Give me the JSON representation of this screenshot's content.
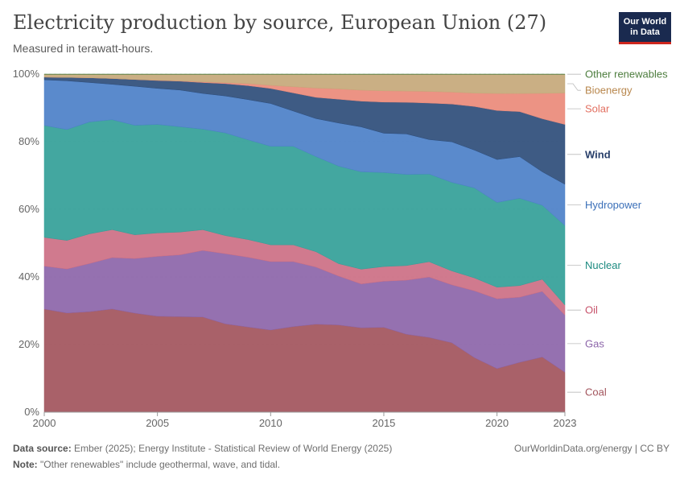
{
  "header": {
    "title": "Electricity production by source, European Union (27)",
    "subtitle": "Measured in terawatt-hours.",
    "logo_line1": "Our World",
    "logo_line2": "in Data"
  },
  "footer": {
    "source_label": "Data source:",
    "source_text": "Ember (2025); Energy Institute - Statistical Review of World Energy (2025)",
    "credit": "OurWorldinData.org/energy | CC BY",
    "note_label": "Note:",
    "note_text": "\"Other renewables\" include geothermal, wave, and tidal."
  },
  "chart_data": {
    "type": "area",
    "stacked": true,
    "normalized": true,
    "x": [
      2000,
      2001,
      2002,
      2003,
      2004,
      2005,
      2006,
      2007,
      2008,
      2009,
      2010,
      2011,
      2012,
      2013,
      2014,
      2015,
      2016,
      2017,
      2018,
      2019,
      2020,
      2021,
      2022,
      2023
    ],
    "ylim": [
      0,
      100
    ],
    "yticks": [
      0,
      20,
      40,
      60,
      80,
      100
    ],
    "ytick_labels": [
      "0%",
      "20%",
      "40%",
      "60%",
      "80%",
      "100%"
    ],
    "xticks": [
      2000,
      2005,
      2010,
      2015,
      2020,
      2023
    ],
    "grid": "horizontal-dashed",
    "legend": "right-inline",
    "series": [
      {
        "name": "Coal",
        "color": "#a2545c",
        "label_color": "#a2545c",
        "values": [
          30.5,
          29.5,
          29.8,
          30.3,
          29.2,
          28.2,
          28.1,
          28.0,
          25.8,
          25.0,
          24.0,
          25.0,
          25.7,
          25.3,
          24.6,
          24.8,
          22.9,
          21.9,
          20.4,
          16.0,
          12.8,
          14.6,
          16.3,
          11.8
        ]
      },
      {
        "name": "Gas",
        "color": "#8c65a9",
        "label_color": "#8c65a9",
        "values": [
          12.7,
          13.1,
          14.3,
          15.1,
          16.1,
          17.6,
          18.2,
          19.6,
          20.5,
          20.5,
          20.0,
          19.0,
          16.7,
          14.2,
          12.8,
          13.5,
          15.9,
          17.7,
          17.0,
          19.6,
          20.5,
          19.1,
          19.4,
          16.9
        ]
      },
      {
        "name": "Oil",
        "color": "#cc6f84",
        "label_color": "#c7526a",
        "values": [
          8.5,
          8.5,
          8.8,
          8.2,
          7.0,
          6.9,
          6.7,
          6.1,
          5.3,
          5.2,
          4.9,
          4.9,
          4.5,
          3.6,
          4.3,
          4.3,
          4.3,
          4.5,
          4.1,
          3.8,
          3.4,
          3.4,
          3.6,
          3.0
        ]
      },
      {
        "name": "Nuclear",
        "color": "#33a098",
        "label_color": "#1c8a80",
        "values": [
          33.1,
          33.0,
          33.2,
          32.3,
          32.3,
          31.9,
          31.0,
          29.6,
          30.0,
          29.3,
          28.8,
          28.8,
          27.8,
          28.3,
          28.4,
          27.5,
          26.8,
          25.7,
          26.0,
          26.4,
          24.9,
          25.6,
          21.9,
          23.5
        ]
      },
      {
        "name": "Hydropower",
        "color": "#4c80c8",
        "label_color": "#3a6fb8",
        "values": [
          13.5,
          14.5,
          11.7,
          10.4,
          11.5,
          10.6,
          10.8,
          10.5,
          10.8,
          11.8,
          12.5,
          10.3,
          11.1,
          12.5,
          13.1,
          11.5,
          11.9,
          10.1,
          11.9,
          11.1,
          12.6,
          12.2,
          9.9,
          12.2
        ]
      },
      {
        "name": "Wind",
        "color": "#2e4d7a",
        "label_color": "#283f6a",
        "values": [
          0.8,
          1.0,
          1.4,
          1.7,
          2.0,
          2.3,
          2.6,
          3.2,
          3.6,
          4.1,
          4.4,
          5.3,
          6.2,
          6.9,
          7.5,
          9.1,
          9.3,
          10.7,
          11.1,
          12.8,
          14.4,
          13.2,
          15.7,
          17.7
        ]
      },
      {
        "name": "Solar",
        "color": "#ea8a7a",
        "label_color": "#e26f60",
        "values": [
          0.0,
          0.0,
          0.0,
          0.0,
          0.0,
          0.1,
          0.1,
          0.2,
          0.3,
          0.6,
          0.9,
          1.8,
          2.7,
          3.0,
          3.2,
          3.3,
          3.3,
          3.4,
          3.5,
          3.9,
          5.0,
          5.3,
          7.5,
          9.3
        ]
      },
      {
        "name": "Bioenergy",
        "color": "#c5a879",
        "label_color": "#b8874d",
        "values": [
          0.8,
          0.9,
          1.0,
          1.2,
          1.5,
          1.7,
          1.9,
          2.2,
          2.4,
          2.7,
          3.2,
          3.6,
          4.0,
          4.2,
          4.6,
          4.8,
          4.9,
          5.0,
          5.2,
          5.5,
          5.6,
          5.6,
          5.6,
          5.5
        ]
      },
      {
        "name": "Other renewables",
        "color": "#4d7d3e",
        "label_color": "#4d7d3e",
        "values": [
          0.1,
          0.1,
          0.1,
          0.1,
          0.1,
          0.1,
          0.1,
          0.1,
          0.1,
          0.1,
          0.1,
          0.1,
          0.1,
          0.1,
          0.1,
          0.1,
          0.1,
          0.1,
          0.1,
          0.1,
          0.1,
          0.1,
          0.1,
          0.1
        ]
      }
    ]
  }
}
